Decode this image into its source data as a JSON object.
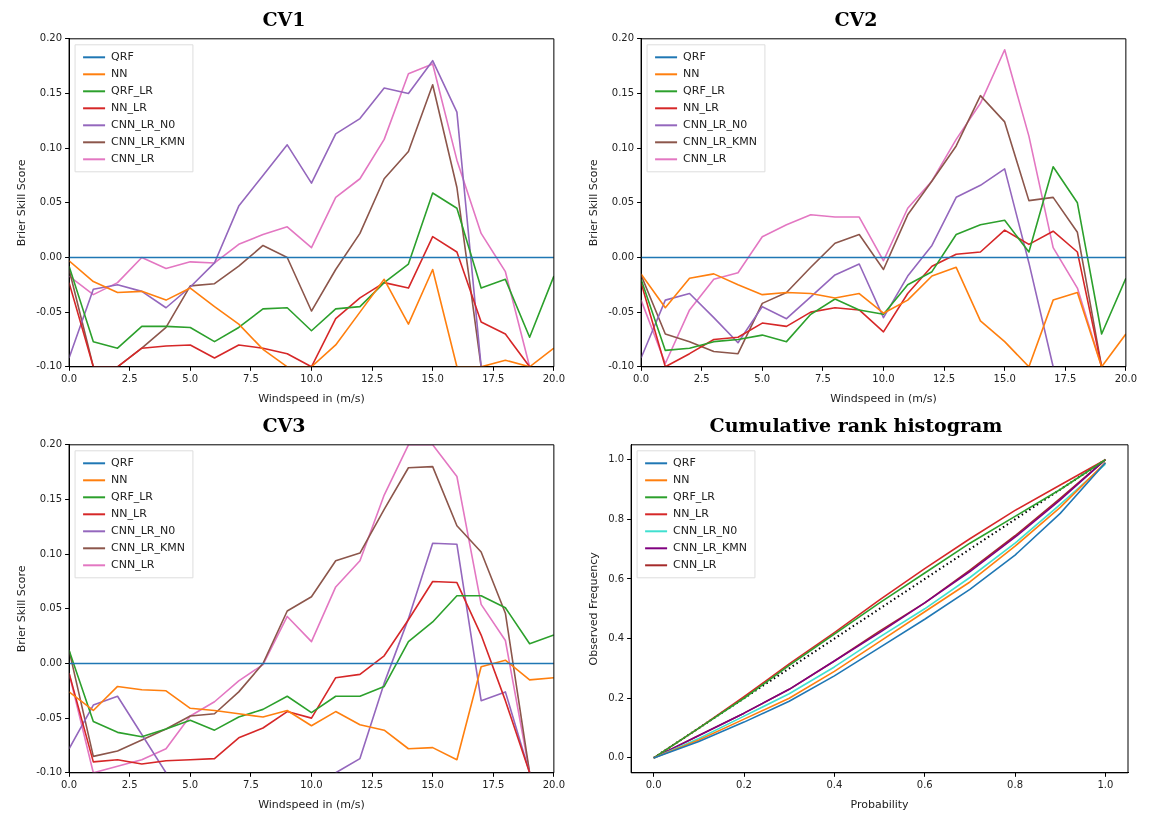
{
  "chart_data": [
    {
      "type": "line",
      "title": "CV1",
      "xlabel": "Windspeed in (m/s)",
      "ylabel": "Brier Skill Score",
      "x": [
        0,
        1,
        2,
        3,
        4,
        5,
        6,
        7,
        8,
        9,
        10,
        11,
        12,
        13,
        14,
        15,
        16,
        17,
        18,
        19,
        20
      ],
      "xlim": [
        0,
        20
      ],
      "ylim": [
        -0.1,
        0.2
      ],
      "xticks": [
        {
          "value": 0,
          "label": "0.0"
        },
        {
          "value": 2.5,
          "label": "2.5"
        },
        {
          "value": 5,
          "label": "5.0"
        },
        {
          "value": 7.5,
          "label": "7.5"
        },
        {
          "value": 10,
          "label": "10.0"
        },
        {
          "value": 12.5,
          "label": "12.5"
        },
        {
          "value": 15,
          "label": "15.0"
        },
        {
          "value": 17.5,
          "label": "17.5"
        },
        {
          "value": 20,
          "label": "20.0"
        }
      ],
      "yticks": [
        {
          "value": -0.1,
          "label": "-0.10"
        },
        {
          "value": -0.05,
          "label": "-0.05"
        },
        {
          "value": 0,
          "label": "0.00"
        },
        {
          "value": 0.05,
          "label": "0.05"
        },
        {
          "value": 0.1,
          "label": "0.10"
        },
        {
          "value": 0.15,
          "label": "0.15"
        },
        {
          "value": 0.2,
          "label": "0.20"
        }
      ],
      "legend": "top left",
      "marker": "none",
      "series": [
        {
          "name": "QRF",
          "color": "#1f77b4",
          "values": [
            0,
            0,
            0,
            0,
            0,
            0,
            0,
            0,
            0,
            0,
            0,
            0,
            0,
            0,
            0,
            0,
            0,
            0,
            0,
            0,
            0
          ]
        },
        {
          "name": "NN",
          "color": "#ff7f0e",
          "values": [
            -0.003,
            -0.022,
            -0.032,
            -0.031,
            -0.039,
            -0.028,
            -0.045,
            -0.061,
            -0.084,
            -0.1,
            -0.1,
            -0.08,
            -0.05,
            -0.02,
            -0.061,
            -0.011,
            -0.1,
            -0.1,
            -0.094,
            -0.1,
            -0.083
          ]
        },
        {
          "name": "QRF_LR",
          "color": "#2ca02c",
          "values": [
            -0.008,
            -0.077,
            -0.083,
            -0.063,
            -0.063,
            -0.064,
            -0.077,
            -0.064,
            -0.047,
            -0.046,
            -0.067,
            -0.047,
            -0.045,
            -0.023,
            -0.006,
            0.059,
            0.045,
            -0.028,
            -0.02,
            -0.073,
            -0.017
          ]
        },
        {
          "name": "NN_LR",
          "color": "#d62728",
          "values": [
            -0.023,
            -0.1,
            -0.1,
            -0.083,
            -0.081,
            -0.08,
            -0.092,
            -0.08,
            -0.083,
            -0.088,
            -0.1,
            -0.056,
            -0.037,
            -0.023,
            -0.028,
            0.019,
            0.005,
            -0.059,
            -0.07,
            -0.1,
            null
          ]
        },
        {
          "name": "CNN_LR_N0",
          "color": "#9467bd",
          "values": [
            -0.092,
            -0.029,
            -0.025,
            -0.031,
            -0.046,
            -0.027,
            -0.005,
            0.047,
            0.075,
            0.103,
            0.068,
            0.113,
            0.127,
            0.155,
            0.15,
            0.18,
            0.133,
            -0.1,
            null,
            null,
            null
          ]
        },
        {
          "name": "CNN_LR_KMN",
          "color": "#8c564b",
          "values": [
            -0.011,
            -0.1,
            -0.1,
            -0.083,
            -0.064,
            -0.026,
            -0.024,
            -0.008,
            0.011,
            0,
            -0.049,
            -0.011,
            0.022,
            0.072,
            0.097,
            0.158,
            0.064,
            -0.1,
            null,
            null,
            null
          ]
        },
        {
          "name": "CNN_LR",
          "color": "#e377c2",
          "values": [
            -0.017,
            -0.034,
            -0.023,
            0,
            -0.01,
            -0.004,
            -0.005,
            0.012,
            0.021,
            0.028,
            0.009,
            0.055,
            0.072,
            0.108,
            0.168,
            0.177,
            0.089,
            0.022,
            -0.013,
            -0.1,
            null
          ]
        }
      ]
    },
    {
      "type": "line",
      "title": "CV2",
      "xlabel": "Windspeed in (m/s)",
      "ylabel": "Brier Skill Score",
      "x": [
        0,
        1,
        2,
        3,
        4,
        5,
        6,
        7,
        8,
        9,
        10,
        11,
        12,
        13,
        14,
        15,
        16,
        17,
        18,
        19,
        20
      ],
      "xlim": [
        0,
        20
      ],
      "ylim": [
        -0.1,
        0.2
      ],
      "xticks": [
        {
          "value": 0,
          "label": "0.0"
        },
        {
          "value": 2.5,
          "label": "2.5"
        },
        {
          "value": 5,
          "label": "5.0"
        },
        {
          "value": 7.5,
          "label": "7.5"
        },
        {
          "value": 10,
          "label": "10.0"
        },
        {
          "value": 12.5,
          "label": "12.5"
        },
        {
          "value": 15,
          "label": "15.0"
        },
        {
          "value": 17.5,
          "label": "17.5"
        },
        {
          "value": 20,
          "label": "20.0"
        }
      ],
      "yticks": [
        {
          "value": -0.1,
          "label": "-0.10"
        },
        {
          "value": -0.05,
          "label": "-0.05"
        },
        {
          "value": 0,
          "label": "0.00"
        },
        {
          "value": 0.05,
          "label": "0.05"
        },
        {
          "value": 0.1,
          "label": "0.10"
        },
        {
          "value": 0.15,
          "label": "0.15"
        },
        {
          "value": 0.2,
          "label": "0.20"
        }
      ],
      "legend": "top left",
      "marker": "none",
      "series": [
        {
          "name": "QRF",
          "color": "#1f77b4",
          "values": [
            0,
            0,
            0,
            0,
            0,
            0,
            0,
            0,
            0,
            0,
            0,
            0,
            0,
            0,
            0,
            0,
            0,
            0,
            0,
            0,
            0
          ]
        },
        {
          "name": "NN",
          "color": "#ff7f0e",
          "values": [
            -0.015,
            -0.046,
            -0.019,
            -0.015,
            -0.025,
            -0.034,
            -0.032,
            -0.033,
            -0.037,
            -0.033,
            -0.051,
            -0.039,
            -0.017,
            -0.009,
            -0.058,
            -0.077,
            -0.1,
            -0.039,
            -0.032,
            -0.1,
            -0.07
          ]
        },
        {
          "name": "QRF_LR",
          "color": "#2ca02c",
          "values": [
            -0.02,
            -0.085,
            -0.083,
            -0.077,
            -0.075,
            -0.071,
            -0.077,
            -0.052,
            -0.038,
            -0.048,
            -0.052,
            -0.025,
            -0.013,
            0.021,
            0.03,
            0.034,
            0.005,
            0.083,
            0.05,
            -0.07,
            -0.019
          ]
        },
        {
          "name": "NN_LR",
          "color": "#d62728",
          "values": [
            -0.023,
            -0.1,
            -0.088,
            -0.075,
            -0.073,
            -0.06,
            -0.063,
            -0.05,
            -0.046,
            -0.048,
            -0.068,
            -0.033,
            -0.008,
            0.003,
            0.005,
            0.025,
            0.012,
            0.024,
            0.005,
            -0.1,
            null
          ]
        },
        {
          "name": "CNN_LR_N0",
          "color": "#9467bd",
          "values": [
            -0.092,
            -0.039,
            -0.033,
            -0.055,
            -0.078,
            -0.045,
            -0.056,
            -0.036,
            -0.016,
            -0.006,
            -0.055,
            -0.017,
            0.011,
            0.055,
            0.066,
            0.081,
            -0.005,
            -0.1,
            null,
            null,
            null
          ]
        },
        {
          "name": "CNN_LR_KMN",
          "color": "#8c564b",
          "values": [
            -0.016,
            -0.07,
            -0.077,
            -0.086,
            -0.088,
            -0.042,
            -0.032,
            -0.009,
            0.013,
            0.021,
            -0.011,
            0.039,
            0.07,
            0.102,
            0.148,
            0.124,
            0.052,
            0.055,
            0.023,
            -0.1,
            null
          ]
        },
        {
          "name": "CNN_LR",
          "color": "#e377c2",
          "values": [
            -0.039,
            -0.097,
            -0.048,
            -0.02,
            -0.014,
            0.019,
            0.03,
            0.039,
            0.037,
            0.037,
            -0.003,
            0.045,
            0.07,
            0.108,
            0.141,
            0.19,
            0.111,
            0.009,
            -0.028,
            -0.1,
            null
          ]
        }
      ]
    },
    {
      "type": "line",
      "title": "CV3",
      "xlabel": "Windspeed in (m/s)",
      "ylabel": "Brier Skill Score",
      "x": [
        0,
        1,
        2,
        3,
        4,
        5,
        6,
        7,
        8,
        9,
        10,
        11,
        12,
        13,
        14,
        15,
        16,
        17,
        18,
        19,
        20
      ],
      "xlim": [
        0,
        20
      ],
      "ylim": [
        -0.1,
        0.2
      ],
      "xticks": [
        {
          "value": 0,
          "label": "0.0"
        },
        {
          "value": 2.5,
          "label": "2.5"
        },
        {
          "value": 5,
          "label": "5.0"
        },
        {
          "value": 7.5,
          "label": "7.5"
        },
        {
          "value": 10,
          "label": "10.0"
        },
        {
          "value": 12.5,
          "label": "12.5"
        },
        {
          "value": 15,
          "label": "15.0"
        },
        {
          "value": 17.5,
          "label": "17.5"
        },
        {
          "value": 20,
          "label": "20.0"
        }
      ],
      "yticks": [
        {
          "value": -0.1,
          "label": "-0.10"
        },
        {
          "value": -0.05,
          "label": "-0.05"
        },
        {
          "value": 0,
          "label": "0.00"
        },
        {
          "value": 0.05,
          "label": "0.05"
        },
        {
          "value": 0.1,
          "label": "0.10"
        },
        {
          "value": 0.15,
          "label": "0.15"
        },
        {
          "value": 0.2,
          "label": "0.20"
        }
      ],
      "legend": "top left",
      "marker": "none",
      "series": [
        {
          "name": "QRF",
          "color": "#1f77b4",
          "values": [
            0,
            0,
            0,
            0,
            0,
            0,
            0,
            0,
            0,
            0,
            0,
            0,
            0,
            0,
            0,
            0,
            0,
            0,
            0,
            0,
            0
          ]
        },
        {
          "name": "NN",
          "color": "#ff7f0e",
          "values": [
            -0.026,
            -0.043,
            -0.021,
            -0.024,
            -0.025,
            -0.041,
            -0.043,
            -0.046,
            -0.049,
            -0.043,
            -0.057,
            -0.044,
            -0.056,
            -0.061,
            -0.078,
            -0.077,
            -0.088,
            -0.003,
            0.003,
            -0.015,
            -0.013
          ]
        },
        {
          "name": "QRF_LR",
          "color": "#2ca02c",
          "values": [
            0.012,
            -0.053,
            -0.063,
            -0.067,
            -0.06,
            -0.052,
            -0.061,
            -0.049,
            -0.042,
            -0.03,
            -0.045,
            -0.03,
            -0.03,
            -0.021,
            0.02,
            0.038,
            0.062,
            0.062,
            0.051,
            0.018,
            0.026
          ]
        },
        {
          "name": "NN_LR",
          "color": "#d62728",
          "values": [
            -0.009,
            -0.09,
            -0.088,
            -0.092,
            -0.089,
            -0.088,
            -0.087,
            -0.068,
            -0.059,
            -0.044,
            -0.05,
            -0.013,
            -0.01,
            0.007,
            0.04,
            0.075,
            0.074,
            0.026,
            -0.034,
            -0.1,
            null
          ]
        },
        {
          "name": "CNN_LR_N0",
          "color": "#9467bd",
          "values": [
            -0.078,
            -0.038,
            -0.03,
            -0.065,
            -0.1,
            null,
            null,
            null,
            null,
            null,
            null,
            -0.1,
            -0.087,
            -0.018,
            0.041,
            0.11,
            0.109,
            -0.034,
            -0.026,
            -0.1,
            null
          ]
        },
        {
          "name": "CNN_LR_KMN",
          "color": "#8c564b",
          "values": [
            0.012,
            -0.085,
            -0.08,
            -0.07,
            -0.06,
            -0.048,
            -0.046,
            -0.026,
            0,
            0.048,
            0.061,
            0.094,
            0.101,
            0.141,
            0.179,
            0.18,
            0.126,
            0.102,
            0.046,
            -0.1,
            null
          ]
        },
        {
          "name": "CNN_LR",
          "color": "#e377c2",
          "values": [
            -0.009,
            -0.1,
            -0.094,
            -0.088,
            -0.078,
            -0.048,
            -0.035,
            -0.016,
            -0.001,
            0.043,
            0.02,
            0.07,
            0.094,
            0.154,
            0.2,
            0.2,
            0.171,
            0.054,
            0.021,
            -0.1,
            null
          ]
        }
      ]
    },
    {
      "type": "line",
      "title": "Cumulative rank histogram",
      "xlabel": "Probability",
      "ylabel": "Observed Frequency",
      "x": [
        0,
        0.1,
        0.2,
        0.3,
        0.4,
        0.5,
        0.6,
        0.7,
        0.8,
        0.9,
        1
      ],
      "xlim": [
        -0.05,
        1.05
      ],
      "ylim": [
        -0.05,
        1.05
      ],
      "xticks": [
        {
          "value": 0,
          "label": "0.0"
        },
        {
          "value": 0.2,
          "label": "0.2"
        },
        {
          "value": 0.4,
          "label": "0.4"
        },
        {
          "value": 0.6,
          "label": "0.6"
        },
        {
          "value": 0.8,
          "label": "0.8"
        },
        {
          "value": 1,
          "label": "1.0"
        }
      ],
      "yticks": [
        {
          "value": 0,
          "label": "0.0"
        },
        {
          "value": 0.2,
          "label": "0.2"
        },
        {
          "value": 0.4,
          "label": "0.4"
        },
        {
          "value": 0.6,
          "label": "0.6"
        },
        {
          "value": 0.8,
          "label": "0.8"
        },
        {
          "value": 1,
          "label": "1.0"
        }
      ],
      "legend": "top left",
      "marker": "none",
      "series": [
        {
          "name": "QRF",
          "color": "#1f77b4",
          "values": [
            0,
            0.055,
            0.12,
            0.19,
            0.275,
            0.37,
            0.465,
            0.565,
            0.68,
            0.82,
            0.99
          ]
        },
        {
          "name": "NN",
          "color": "#ff7f0e",
          "values": [
            0,
            0.06,
            0.13,
            0.2,
            0.29,
            0.39,
            0.49,
            0.59,
            0.71,
            0.84,
            0.99
          ]
        },
        {
          "name": "QRF_LR",
          "color": "#2ca02c",
          "values": [
            0,
            0.1,
            0.2,
            0.31,
            0.415,
            0.52,
            0.62,
            0.72,
            0.81,
            0.9,
            1
          ]
        },
        {
          "name": "NN_LR",
          "color": "#d62728",
          "values": [
            0,
            0.1,
            0.205,
            0.315,
            0.42,
            0.53,
            0.635,
            0.735,
            0.83,
            0.915,
            1
          ]
        },
        {
          "name": "CNN_LR_N0",
          "color": "#40e0d0",
          "values": [
            0,
            0.065,
            0.14,
            0.215,
            0.305,
            0.405,
            0.5,
            0.605,
            0.72,
            0.85,
            0.985
          ]
        },
        {
          "name": "CNN_LR_KMN",
          "color": "#800080",
          "values": [
            0,
            0.075,
            0.15,
            0.23,
            0.325,
            0.42,
            0.52,
            0.625,
            0.74,
            0.865,
            1
          ]
        },
        {
          "name": "CNN_LR",
          "color": "#a52a2a",
          "values": [
            0,
            0.075,
            0.15,
            0.23,
            0.325,
            0.425,
            0.52,
            0.63,
            0.745,
            0.87,
            1
          ]
        },
        {
          "type": "line",
          "color": "#000000",
          "line_style": "dotted",
          "x": [
            0,
            1
          ],
          "values": [
            0,
            1
          ]
        }
      ]
    }
  ]
}
